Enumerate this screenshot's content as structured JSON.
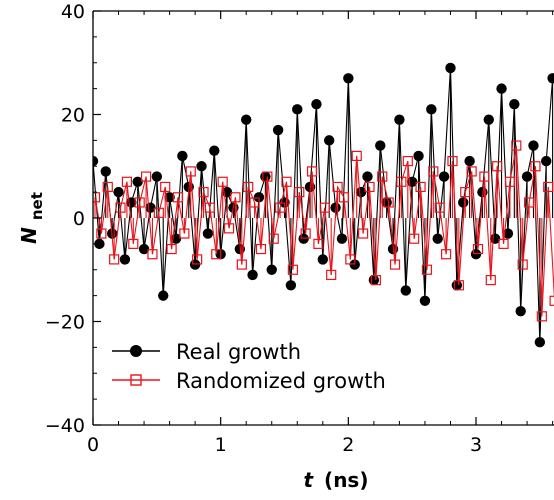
{
  "chart_data": {
    "type": "scatter",
    "x_label": {
      "main": "t",
      "unit": "(ns)"
    },
    "y_label": {
      "main": "N",
      "sub": "net"
    },
    "xlim": [
      0,
      3.65
    ],
    "ylim": [
      -40,
      40
    ],
    "x_ticks": [
      0,
      1,
      2,
      3
    ],
    "x_tick_labels": [
      "0",
      "1",
      "2",
      "3"
    ],
    "y_ticks": [
      -40,
      -20,
      0,
      20,
      40
    ],
    "y_tick_labels": [
      "−40",
      "−20",
      "0",
      "20",
      "40"
    ],
    "grid": false,
    "legend_position": "lower-left",
    "series": [
      {
        "name": "Real growth",
        "marker": "filled-circle",
        "color": "#000000",
        "x": [
          0.0,
          0.05,
          0.1,
          0.15,
          0.2,
          0.25,
          0.3,
          0.35,
          0.4,
          0.45,
          0.5,
          0.55,
          0.6,
          0.65,
          0.7,
          0.75,
          0.8,
          0.85,
          0.9,
          0.95,
          1.0,
          1.05,
          1.1,
          1.15,
          1.2,
          1.25,
          1.3,
          1.35,
          1.4,
          1.45,
          1.5,
          1.55,
          1.6,
          1.65,
          1.7,
          1.75,
          1.8,
          1.85,
          1.9,
          1.95,
          2.0,
          2.05,
          2.1,
          2.15,
          2.2,
          2.25,
          2.3,
          2.35,
          2.4,
          2.45,
          2.5,
          2.55,
          2.6,
          2.65,
          2.7,
          2.75,
          2.8,
          2.85,
          2.9,
          2.95,
          3.0,
          3.05,
          3.1,
          3.15,
          3.2,
          3.25,
          3.3,
          3.35,
          3.4,
          3.45,
          3.5,
          3.55,
          3.6
        ],
        "y": [
          11,
          -5,
          9,
          -3,
          5,
          -8,
          3,
          7,
          -6,
          2,
          8,
          -15,
          4,
          -4,
          12,
          6,
          -9,
          10,
          -3,
          13,
          -7,
          5,
          2,
          -6,
          19,
          -11,
          4,
          8,
          -10,
          17,
          3,
          -13,
          21,
          -4,
          6,
          22,
          -8,
          15,
          2,
          -4,
          27,
          -9,
          5,
          8,
          -12,
          14,
          3,
          -6,
          19,
          -14,
          7,
          12,
          -16,
          21,
          -4,
          8,
          29,
          -13,
          3,
          11,
          -7,
          5,
          19,
          -4,
          25,
          -3,
          22,
          -18,
          8,
          14,
          -24,
          11,
          27
        ]
      },
      {
        "name": "Randomized growth",
        "marker": "open-square",
        "color": "#e8141c",
        "x": [
          0.0,
          0.05,
          0.1,
          0.15,
          0.2,
          0.25,
          0.3,
          0.35,
          0.4,
          0.45,
          0.5,
          0.55,
          0.6,
          0.65,
          0.7,
          0.75,
          0.8,
          0.85,
          0.9,
          0.95,
          1.0,
          1.05,
          1.1,
          1.15,
          1.2,
          1.25,
          1.3,
          1.35,
          1.4,
          1.45,
          1.5,
          1.55,
          1.6,
          1.65,
          1.7,
          1.75,
          1.8,
          1.85,
          1.9,
          1.95,
          2.0,
          2.05,
          2.1,
          2.15,
          2.2,
          2.25,
          2.3,
          2.35,
          2.4,
          2.45,
          2.5,
          2.55,
          2.6,
          2.65,
          2.7,
          2.75,
          2.8,
          2.85,
          2.9,
          2.95,
          3.0,
          3.05,
          3.1,
          3.15,
          3.2,
          3.25,
          3.3,
          3.35,
          3.4,
          3.45,
          3.5,
          3.55,
          3.6
        ],
        "y": [
          4,
          -3,
          6,
          -8,
          2,
          7,
          -5,
          3,
          8,
          -7,
          1,
          6,
          -6,
          4,
          -3,
          9,
          -8,
          5,
          2,
          -7,
          7,
          -2,
          4,
          -9,
          6,
          3,
          -6,
          8,
          -4,
          2,
          7,
          -10,
          5,
          -3,
          9,
          -5,
          2,
          -11,
          6,
          4,
          -8,
          12,
          -3,
          6,
          -12,
          8,
          3,
          -9,
          7,
          11,
          -4,
          6,
          -10,
          9,
          2,
          -7,
          11,
          -13,
          5,
          9,
          -6,
          8,
          -12,
          10,
          -5,
          7,
          14,
          -9,
          3,
          10,
          -19,
          6,
          -16
        ]
      }
    ]
  }
}
